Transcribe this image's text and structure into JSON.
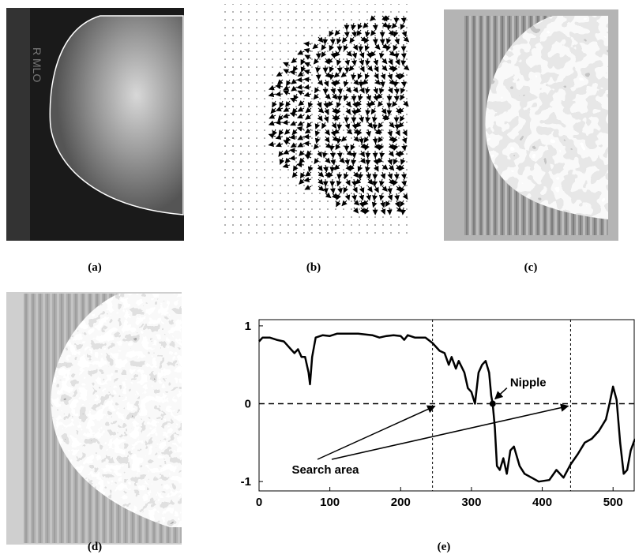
{
  "panels": [
    "(a)",
    "(b)",
    "(c)",
    "(d)",
    "(e)"
  ],
  "chart_data": {
    "type": "line",
    "x": [
      0,
      5,
      15,
      25,
      35,
      40,
      45,
      50,
      55,
      60,
      65,
      70,
      72,
      75,
      80,
      90,
      100,
      110,
      120,
      140,
      160,
      170,
      180,
      190,
      200,
      205,
      210,
      220,
      235,
      245,
      255,
      262,
      268,
      272,
      278,
      282,
      290,
      295,
      300,
      305,
      310,
      315,
      320,
      325,
      328,
      330,
      333,
      336,
      340,
      345,
      350,
      355,
      360,
      368,
      375,
      385,
      395,
      410,
      420,
      430,
      440,
      450,
      460,
      470,
      480,
      490,
      495,
      500,
      505,
      510,
      515,
      520,
      525,
      531
    ],
    "series": [
      {
        "color": "#000000",
        "values": [
          0.8,
          0.85,
          0.85,
          0.82,
          0.8,
          0.75,
          0.7,
          0.65,
          0.7,
          0.6,
          0.6,
          0.4,
          0.25,
          0.6,
          0.85,
          0.88,
          0.87,
          0.9,
          0.9,
          0.9,
          0.88,
          0.85,
          0.87,
          0.88,
          0.87,
          0.82,
          0.88,
          0.85,
          0.85,
          0.78,
          0.68,
          0.65,
          0.5,
          0.6,
          0.45,
          0.55,
          0.4,
          0.2,
          0.15,
          0.0,
          0.4,
          0.5,
          0.55,
          0.4,
          0.1,
          0.0,
          -0.3,
          -0.8,
          -0.85,
          -0.7,
          -0.9,
          -0.6,
          -0.55,
          -0.8,
          -0.9,
          -0.95,
          -1.0,
          -0.98,
          -0.85,
          -0.95,
          -0.78,
          -0.65,
          -0.5,
          -0.45,
          -0.35,
          -0.2,
          0.0,
          0.22,
          0.05,
          -0.5,
          -0.9,
          -0.85,
          -0.6,
          -0.45
        ]
      }
    ],
    "xlim": [
      0,
      531
    ],
    "ylim": [
      -1.12,
      1.08
    ],
    "xticks": [
      0,
      100,
      200,
      300,
      400,
      500
    ],
    "yticks": [
      -1,
      0,
      1
    ],
    "hline": 0,
    "search_area": {
      "label": "Search area",
      "bounds": [
        245,
        440
      ]
    },
    "nipple": {
      "label": "Nipple",
      "x": 330,
      "y": 0
    }
  }
}
